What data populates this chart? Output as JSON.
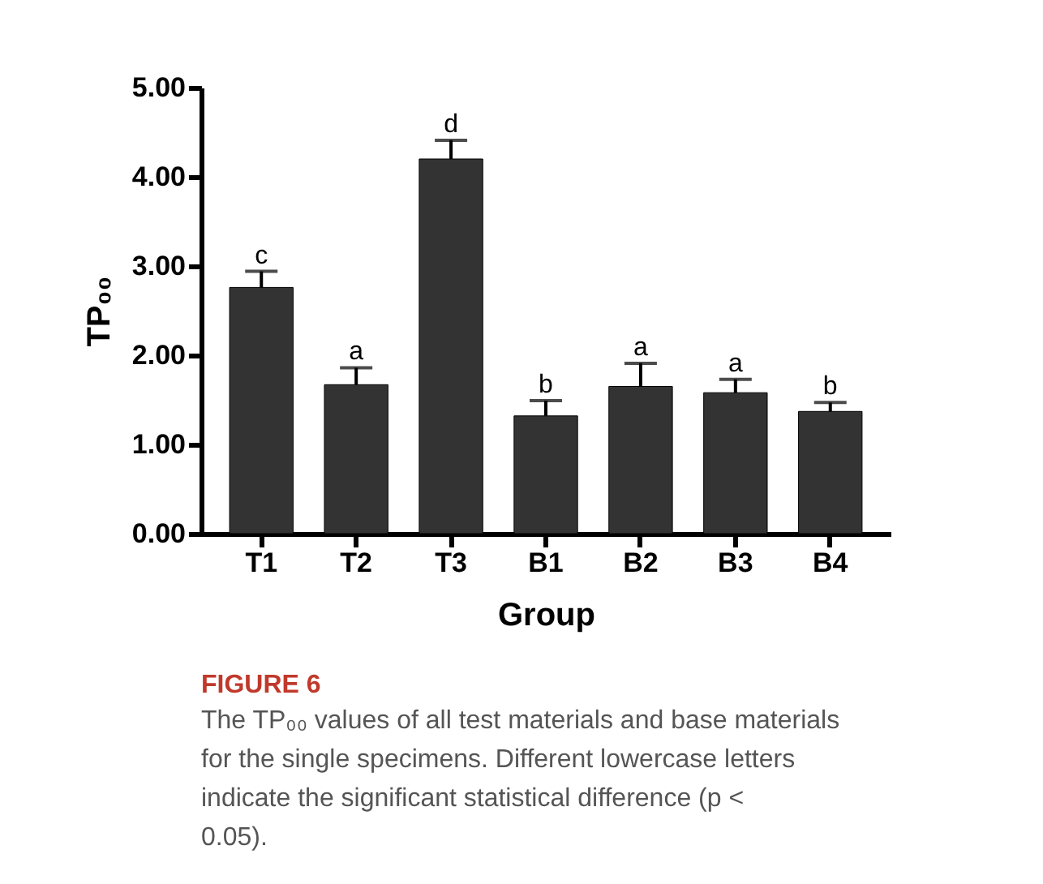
{
  "chart_data": {
    "type": "bar",
    "xlabel": "Group",
    "ylabel": "TP₀₀",
    "categories": [
      "T1",
      "T2",
      "T3",
      "B1",
      "B2",
      "B3",
      "B4"
    ],
    "values": [
      2.76,
      1.67,
      4.2,
      1.32,
      1.65,
      1.58,
      1.37
    ],
    "errors": [
      [
        2.76,
        2.94
      ],
      [
        1.67,
        1.86
      ],
      [
        4.2,
        4.41
      ],
      [
        1.32,
        1.49
      ],
      [
        1.65,
        1.91
      ],
      [
        1.58,
        1.73
      ],
      [
        1.37,
        1.47
      ]
    ],
    "color": "#333333",
    "ylim": [
      0,
      5
    ],
    "yticks": [
      {
        "value": 0,
        "label": "0.00"
      },
      {
        "value": 1,
        "label": "1.00"
      },
      {
        "value": 2,
        "label": "2.00"
      },
      {
        "value": 3,
        "label": "3.00"
      },
      {
        "value": 4,
        "label": "4.00"
      },
      {
        "value": 5,
        "label": "5.00"
      }
    ],
    "grid": false,
    "annotations": [
      {
        "text": "c",
        "x": "T1",
        "y": 2.94
      },
      {
        "text": "a",
        "x": "T2",
        "y": 1.86
      },
      {
        "text": "d",
        "x": "T3",
        "y": 4.41
      },
      {
        "text": "b",
        "x": "B1",
        "y": 1.49
      },
      {
        "text": "a",
        "x": "B2",
        "y": 1.91
      },
      {
        "text": "a",
        "x": "B3",
        "y": 1.73
      },
      {
        "text": "b",
        "x": "B4",
        "y": 1.47
      },
      "FIGURE 6",
      "The TP₀₀ values of all test materials and base materials for the single specimens. Different lowercase letters indicate the significant statistical difference (p < 0.05)."
    ]
  }
}
